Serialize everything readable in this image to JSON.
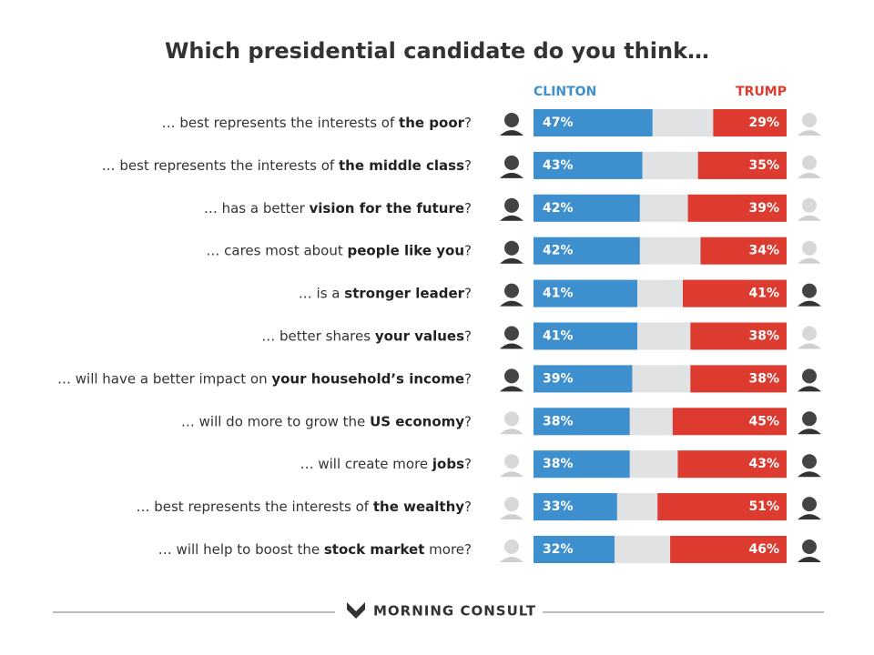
{
  "chart_data": {
    "type": "diverging_bar",
    "title": "Which presidential candidate do you think…",
    "footer": "MORNING CONSULT",
    "xlim": [
      0,
      100
    ],
    "categories": [
      [
        "… best represents the interests of ",
        "the poor",
        "?"
      ],
      [
        "… best represents the interests of ",
        "the middle class",
        "?"
      ],
      [
        "… has a better ",
        "vision for the future",
        "?"
      ],
      [
        "… cares most about ",
        "people like you",
        "?"
      ],
      [
        "… is a ",
        "stronger leader",
        "?"
      ],
      [
        "… better shares ",
        "your values",
        "?"
      ],
      [
        "… will have a better impact on ",
        "your household’s income",
        "?"
      ],
      [
        "… will do more to grow the ",
        "US economy",
        "?"
      ],
      [
        "… will create more ",
        "jobs",
        "?"
      ],
      [
        "… best represents the interests of ",
        "the wealthy",
        "?"
      ],
      [
        "… will help to boost the ",
        "stock market",
        " more?"
      ]
    ],
    "background_color": "#e1e2e4",
    "series": [
      {
        "name": "CLINTON",
        "color": "#3d8fce",
        "side": "left",
        "values": [
          47,
          43,
          42,
          42,
          41,
          41,
          39,
          38,
          38,
          33,
          32
        ],
        "value_labels": [
          "47%",
          "43%",
          "42%",
          "42%",
          "41%",
          "41%",
          "39%",
          "38%",
          "38%",
          "33%",
          "32%"
        ]
      },
      {
        "name": "TRUMP",
        "color": "#dd3b2f",
        "side": "right",
        "values": [
          29,
          35,
          39,
          34,
          41,
          38,
          38,
          45,
          43,
          51,
          46
        ],
        "value_labels": [
          "29%",
          "35%",
          "39%",
          "34%",
          "41%",
          "38%",
          "38%",
          "45%",
          "43%",
          "51%",
          "46%"
        ]
      }
    ]
  }
}
